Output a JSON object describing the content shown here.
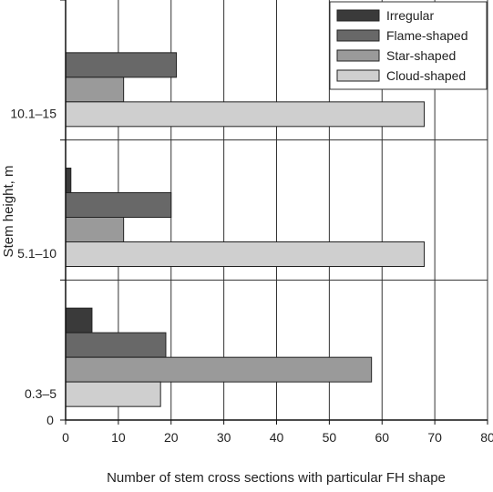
{
  "chart_data": {
    "type": "bar",
    "orientation": "horizontal",
    "categories": [
      "0.3–5",
      "5.1–10",
      "10.1–15"
    ],
    "series": [
      {
        "name": "Irregular",
        "values": [
          5,
          1,
          0
        ],
        "color": "#3a3a3a"
      },
      {
        "name": "Flame-shaped",
        "values": [
          19,
          20,
          21
        ],
        "color": "#686868"
      },
      {
        "name": "Star-shaped",
        "values": [
          58,
          11,
          11
        ],
        "color": "#9a9a9a"
      },
      {
        "name": "Cloud-shaped",
        "values": [
          18,
          68,
          68
        ],
        "color": "#cfcfcf"
      }
    ],
    "title": "",
    "xlabel": "Number of stem cross sections with particular FH shape",
    "ylabel": "Stem height, m",
    "xlim": [
      0,
      80
    ],
    "xticks": [
      0,
      10,
      20,
      30,
      40,
      50,
      60,
      70,
      80
    ],
    "y_origin_label": "0",
    "grid": true,
    "legend": "top-right"
  }
}
